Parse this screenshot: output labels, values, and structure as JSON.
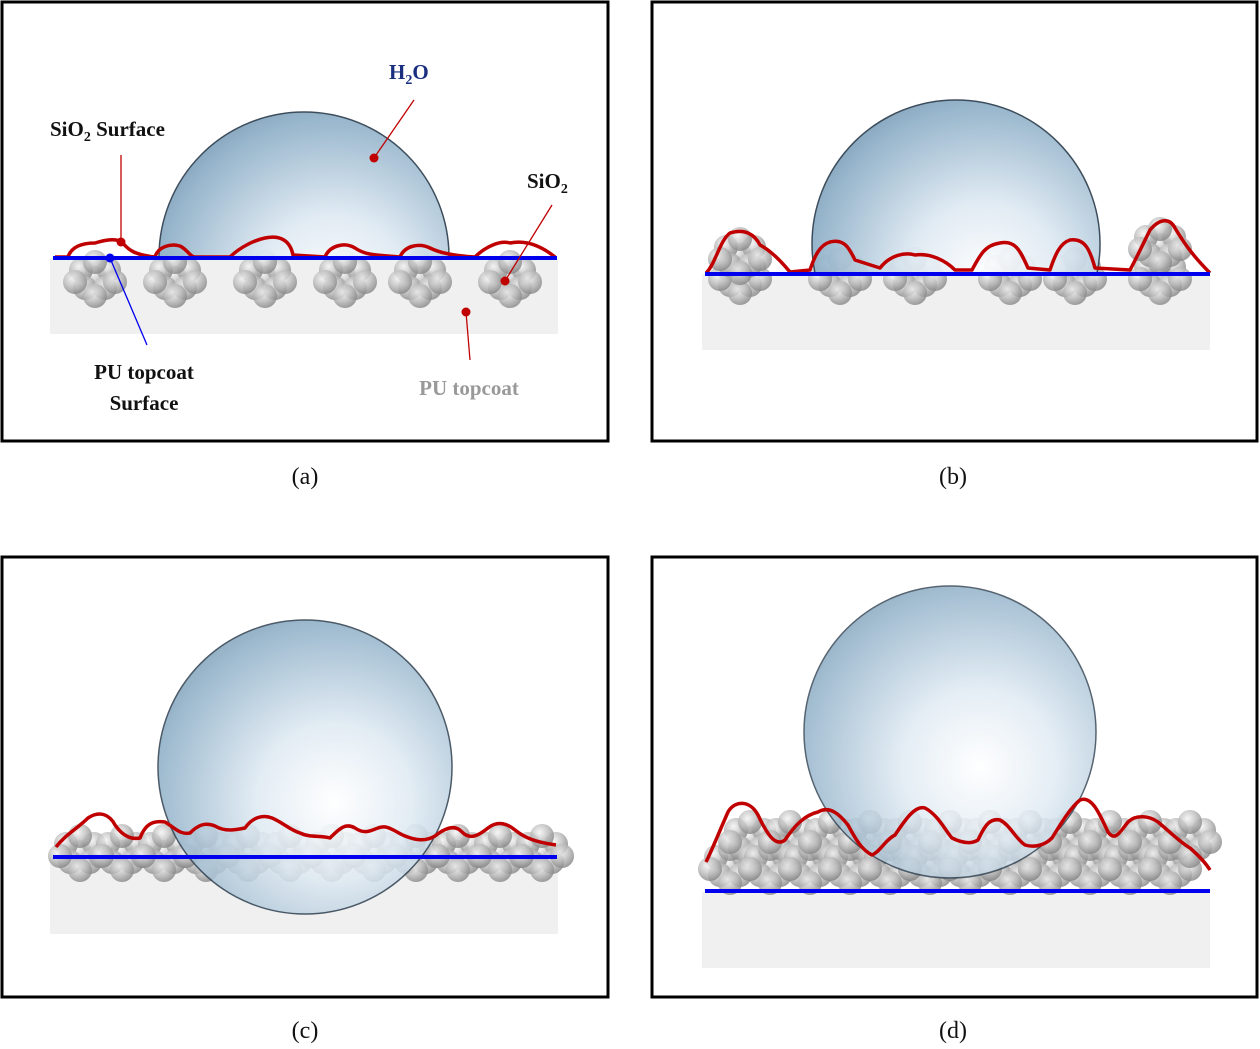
{
  "panels": [
    {
      "caption": "(a)",
      "labels": {
        "water": "H",
        "water_sub": "2",
        "water_end": "O",
        "sio2_surface": "SiO",
        "sio2_surface_sub": "2",
        "sio2_surface_end": " Surface",
        "sio2": "SiO",
        "sio2_sub": "2",
        "pu_surface_line1": "PU topcoat",
        "pu_surface_line2": "Surface",
        "pu_topcoat": "PU topcoat"
      }
    },
    {
      "caption": "(b)"
    },
    {
      "caption": "(c)"
    },
    {
      "caption": "(d)"
    }
  ],
  "colors": {
    "sio2_surface_line": "#c00000",
    "pu_surface_line": "#0000ee",
    "water_label": "#1a2f80",
    "pu_label": "#999999",
    "substrate": "#f0f0f0"
  }
}
